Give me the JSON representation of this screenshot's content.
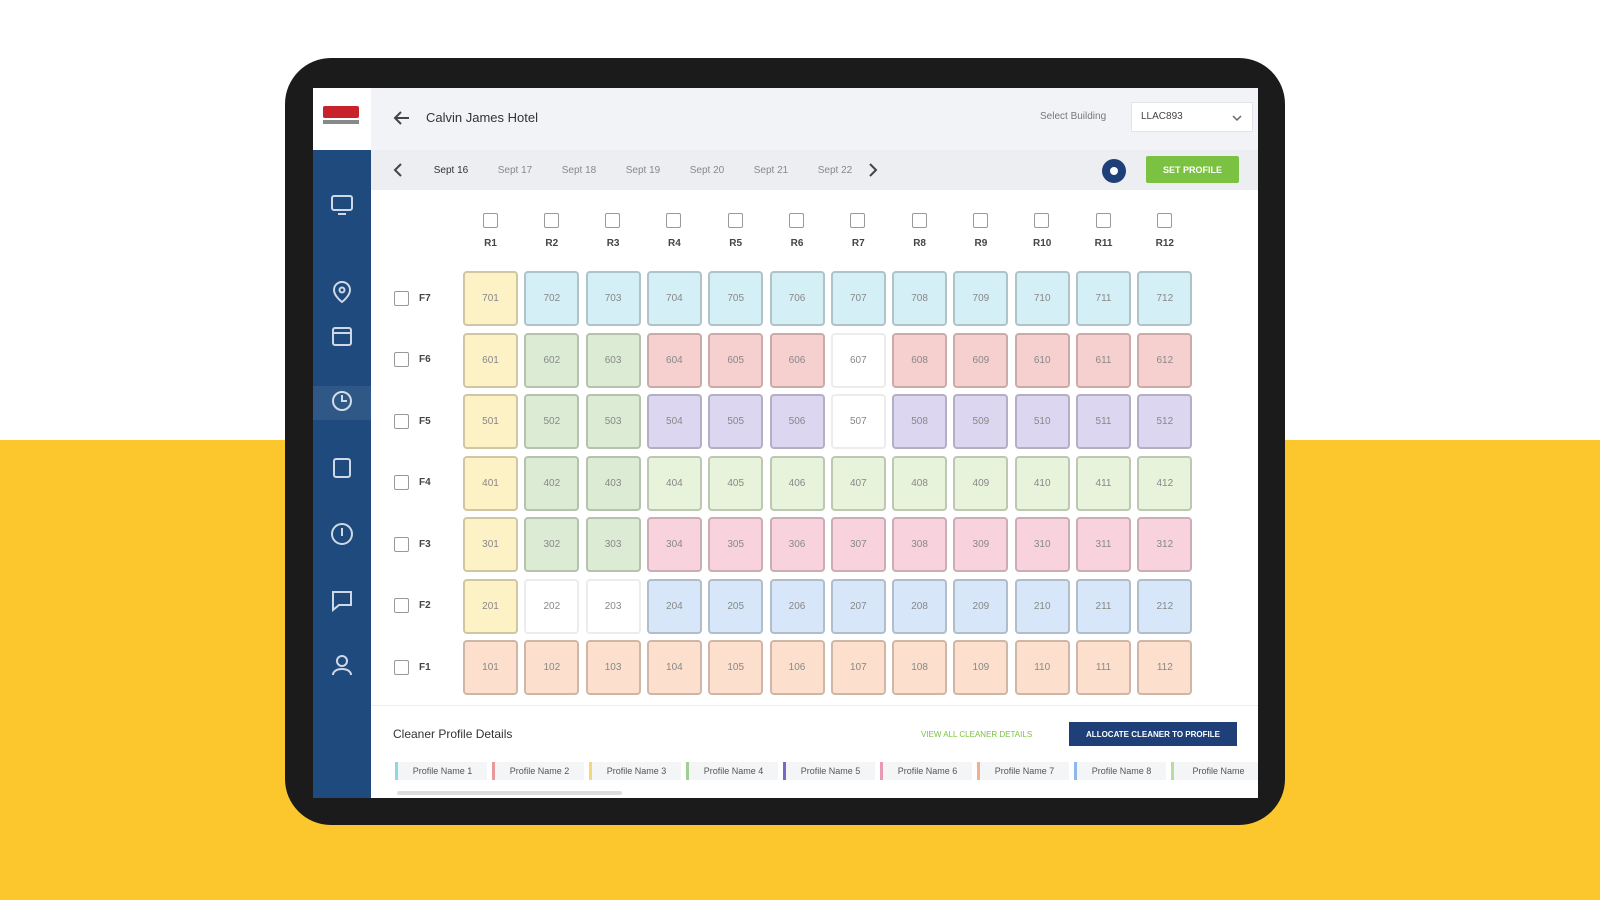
{
  "header": {
    "title": "Calvin James Hotel",
    "select_label": "Select Building",
    "building": "LLAC893"
  },
  "dates": {
    "items": [
      "Sept 16",
      "Sept 17",
      "Sept 18",
      "Sept 19",
      "Sept 20",
      "Sept 21",
      "Sept 22"
    ],
    "button": "SET PROFILE"
  },
  "grid": {
    "columns": [
      "R1",
      "R2",
      "R3",
      "R4",
      "R5",
      "R6",
      "R7",
      "R8",
      "R9",
      "R10",
      "R11",
      "R12"
    ],
    "rows": [
      {
        "label": "F7",
        "rooms": [
          "701",
          "702",
          "703",
          "704",
          "705",
          "706",
          "707",
          "708",
          "709",
          "710",
          "711",
          "712"
        ],
        "colors": [
          "#fdf1c6",
          "#d4eff5",
          "#d4eff5",
          "#d4eff5",
          "#d4eff5",
          "#d4eff5",
          "#d4eff5",
          "#d4eff5",
          "#d4eff5",
          "#d4eff5",
          "#d4eff5",
          "#d4eff5"
        ]
      },
      {
        "label": "F6",
        "rooms": [
          "601",
          "602",
          "603",
          "604",
          "605",
          "606",
          "607",
          "608",
          "609",
          "610",
          "611",
          "612"
        ],
        "colors": [
          "#fdf1c6",
          "#dcecd4",
          "#dcecd4",
          "#f6d0cf",
          "#f6d0cf",
          "#f6d0cf",
          "#ffffff",
          "#f6d0cf",
          "#f6d0cf",
          "#f6d0cf",
          "#f6d0cf",
          "#f6d0cf"
        ]
      },
      {
        "label": "F5",
        "rooms": [
          "501",
          "502",
          "503",
          "504",
          "505",
          "506",
          "507",
          "508",
          "509",
          "510",
          "511",
          "512"
        ],
        "colors": [
          "#fdf1c6",
          "#dcecd4",
          "#dcecd4",
          "#ddd6f0",
          "#ddd6f0",
          "#ddd6f0",
          "#ffffff",
          "#ddd6f0",
          "#ddd6f0",
          "#ddd6f0",
          "#ddd6f0",
          "#ddd6f0"
        ]
      },
      {
        "label": "F4",
        "rooms": [
          "401",
          "402",
          "403",
          "404",
          "405",
          "406",
          "407",
          "408",
          "409",
          "410",
          "411",
          "412"
        ],
        "colors": [
          "#fdf1c6",
          "#dcecd4",
          "#dcecd4",
          "#e7f3da",
          "#e7f3da",
          "#e7f3da",
          "#e7f3da",
          "#e7f3da",
          "#e7f3da",
          "#e7f3da",
          "#e7f3da",
          "#e7f3da"
        ]
      },
      {
        "label": "F3",
        "rooms": [
          "301",
          "302",
          "303",
          "304",
          "305",
          "306",
          "307",
          "308",
          "309",
          "310",
          "311",
          "312"
        ],
        "colors": [
          "#fdf1c6",
          "#dcecd4",
          "#dcecd4",
          "#f8d3dd",
          "#f8d3dd",
          "#f8d3dd",
          "#f8d3dd",
          "#f8d3dd",
          "#f8d3dd",
          "#f8d3dd",
          "#f8d3dd",
          "#f8d3dd"
        ]
      },
      {
        "label": "F2",
        "rooms": [
          "201",
          "202",
          "203",
          "204",
          "205",
          "206",
          "207",
          "208",
          "209",
          "210",
          "211",
          "212"
        ],
        "colors": [
          "#fdf1c6",
          "#ffffff",
          "#ffffff",
          "#d7e6f8",
          "#d7e6f8",
          "#d7e6f8",
          "#d7e6f8",
          "#d7e6f8",
          "#d7e6f8",
          "#d7e6f8",
          "#d7e6f8",
          "#d7e6f8"
        ]
      },
      {
        "label": "F1",
        "rooms": [
          "101",
          "102",
          "103",
          "104",
          "105",
          "106",
          "107",
          "108",
          "109",
          "110",
          "111",
          "112"
        ],
        "colors": [
          "#fcdfcc",
          "#fcdfcc",
          "#fcdfcc",
          "#fcdfcc",
          "#fcdfcc",
          "#fcdfcc",
          "#fcdfcc",
          "#fcdfcc",
          "#fcdfcc",
          "#fcdfcc",
          "#fcdfcc",
          "#fcdfcc"
        ]
      }
    ]
  },
  "profiles": {
    "title": "Cleaner Profile Details",
    "view_all": "VIEW ALL CLEANER DETAILS",
    "allocate": "ALLOCATE CLEANER TO PROFILE",
    "items": [
      {
        "name": "Profile Name 1",
        "color": "#8fd6e6"
      },
      {
        "name": "Profile Name 2",
        "color": "#e89a9a"
      },
      {
        "name": "Profile Name 3",
        "color": "#f3d77a"
      },
      {
        "name": "Profile Name 4",
        "color": "#9fcf94"
      },
      {
        "name": "Profile Name 5",
        "color": "#7a68c4"
      },
      {
        "name": "Profile Name 6",
        "color": "#e89ab2"
      },
      {
        "name": "Profile Name 7",
        "color": "#f0b08c"
      },
      {
        "name": "Profile Name 8",
        "color": "#8fb8e8"
      },
      {
        "name": "Profile Name",
        "color": "#b6dca0"
      }
    ]
  }
}
